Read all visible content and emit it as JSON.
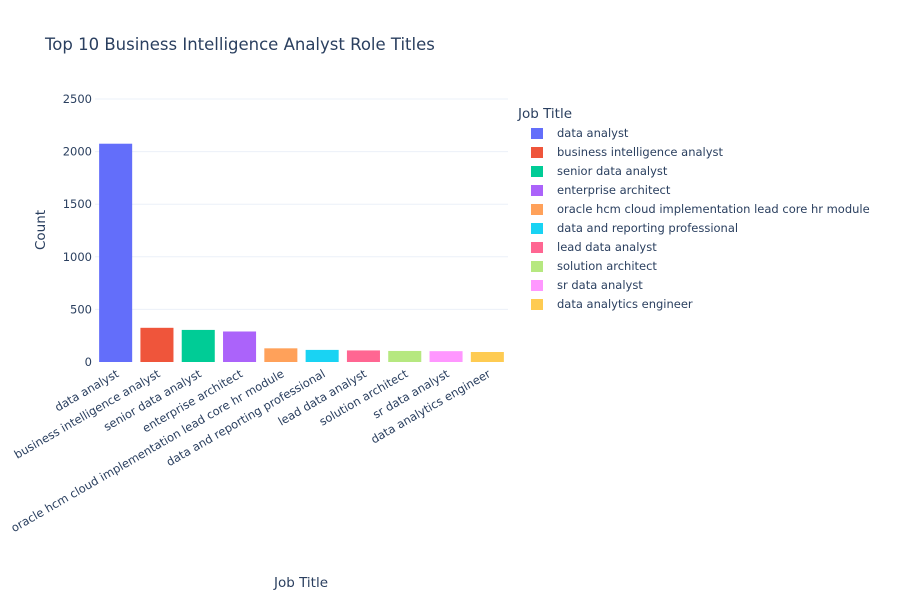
{
  "chart_data": {
    "type": "bar",
    "title": "Top 10 Business Intelligence Analyst Role Titles",
    "xlabel": "Job Title",
    "ylabel": "Count",
    "ylim": [
      0,
      2500
    ],
    "yticks": [
      0,
      500,
      1000,
      1500,
      2000,
      2500
    ],
    "grid": true,
    "legend": {
      "title": "Job Title",
      "placement": "right"
    },
    "categories": [
      "data analyst",
      "business intelligence analyst",
      "senior data analyst",
      "enterprise architect",
      "oracle hcm cloud implementation lead core hr module",
      "data and reporting professional",
      "lead data analyst",
      "solution architect",
      "sr data analyst",
      "data analytics engineer"
    ],
    "values": [
      2075,
      325,
      305,
      290,
      130,
      115,
      110,
      105,
      103,
      95
    ],
    "colors": [
      "#636efa",
      "#EF553B",
      "#00cc96",
      "#ab63fa",
      "#FFA15A",
      "#19d3f3",
      "#FF6692",
      "#B6E880",
      "#FF97FF",
      "#FECB52"
    ]
  }
}
